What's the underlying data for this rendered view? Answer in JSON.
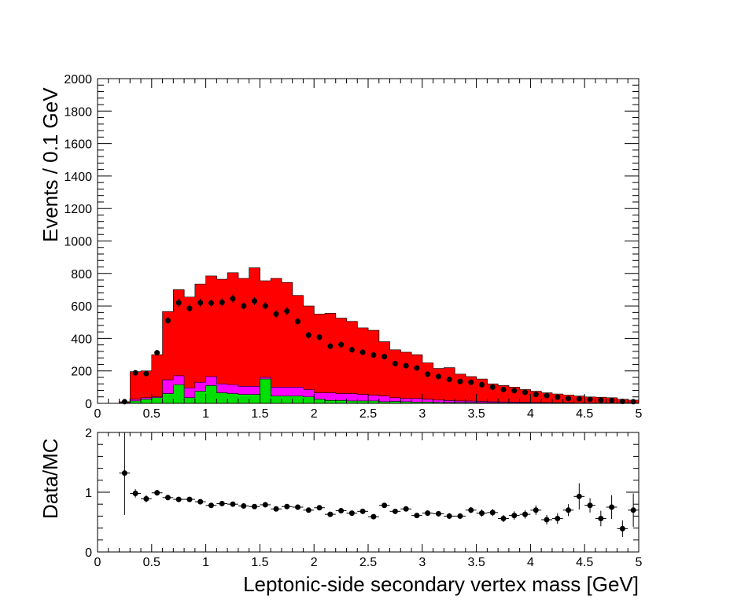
{
  "chart_data": [
    {
      "type": "bar",
      "panel": "main",
      "ylabel": "Events / 0.1 GeV",
      "xlim": [
        0,
        5
      ],
      "ylim": [
        0,
        2000
      ],
      "x_ticks": [
        "0",
        "0.5",
        "1",
        "1.5",
        "2",
        "2.5",
        "3",
        "3.5",
        "4",
        "4.5",
        "5"
      ],
      "y_ticks": [
        "0",
        "200",
        "400",
        "600",
        "800",
        "1000",
        "1200",
        "1400",
        "1600",
        "1800",
        "2000"
      ],
      "bin_width": 0.1,
      "bin_centers": [
        0.25,
        0.35,
        0.45,
        0.55,
        0.65,
        0.75,
        0.85,
        0.95,
        1.05,
        1.15,
        1.25,
        1.35,
        1.45,
        1.55,
        1.65,
        1.75,
        1.85,
        1.95,
        2.05,
        2.15,
        2.25,
        2.35,
        2.45,
        2.55,
        2.65,
        2.75,
        2.85,
        2.95,
        3.05,
        3.15,
        3.25,
        3.35,
        3.45,
        3.55,
        3.65,
        3.75,
        3.85,
        3.95,
        4.05,
        4.15,
        4.25,
        4.35,
        4.45,
        4.55,
        4.65,
        4.75,
        4.85,
        4.95
      ],
      "stack_colors": {
        "green": "#00e000",
        "magenta": "#ff00ff",
        "red": "#ff0000"
      },
      "series": [
        {
          "color": "#00e000",
          "stack": "bottom",
          "values": [
            0,
            15,
            25,
            35,
            60,
            115,
            35,
            75,
            110,
            65,
            60,
            55,
            55,
            150,
            45,
            45,
            45,
            40,
            25,
            18,
            18,
            15,
            15,
            15,
            10,
            12,
            10,
            8,
            8,
            6,
            5,
            5,
            5,
            4,
            4,
            3,
            3,
            3,
            2,
            2,
            2,
            1,
            1,
            1,
            1,
            1,
            1,
            1
          ]
        },
        {
          "color": "#ff00ff",
          "stack": "middle",
          "values": [
            5,
            25,
            35,
            40,
            145,
            170,
            95,
            130,
            165,
            120,
            115,
            105,
            105,
            160,
            100,
            100,
            100,
            85,
            65,
            65,
            60,
            60,
            55,
            50,
            45,
            35,
            30,
            30,
            25,
            20,
            18,
            15,
            14,
            12,
            10,
            9,
            8,
            7,
            6,
            5,
            4,
            4,
            3,
            3,
            3,
            2,
            2,
            2
          ]
        },
        {
          "color": "#ff0000",
          "stack": "total",
          "values": [
            10,
            195,
            200,
            300,
            565,
            700,
            655,
            735,
            785,
            765,
            805,
            770,
            835,
            755,
            770,
            745,
            665,
            600,
            550,
            555,
            525,
            505,
            465,
            450,
            380,
            330,
            315,
            300,
            250,
            215,
            220,
            180,
            165,
            150,
            120,
            110,
            100,
            85,
            75,
            65,
            58,
            52,
            45,
            40,
            38,
            35,
            25,
            20
          ]
        }
      ],
      "data_points": [
        10,
        188,
        183,
        312,
        510,
        620,
        585,
        620,
        618,
        622,
        645,
        600,
        630,
        600,
        550,
        568,
        505,
        420,
        408,
        352,
        362,
        330,
        315,
        298,
        288,
        245,
        232,
        218,
        180,
        165,
        148,
        135,
        130,
        115,
        100,
        85,
        78,
        68,
        55,
        48,
        38,
        30,
        28,
        25,
        20,
        18,
        12,
        10
      ]
    },
    {
      "type": "scatter",
      "panel": "ratio",
      "xlabel": "Leptonic-side secondary vertex mass [GeV]",
      "ylabel": "Data/MC",
      "xlim": [
        0,
        5
      ],
      "ylim": [
        0,
        2
      ],
      "x_ticks": [
        "0",
        "0.5",
        "1",
        "1.5",
        "2",
        "2.5",
        "3",
        "3.5",
        "4",
        "4.5",
        "5"
      ],
      "y_ticks": [
        "0",
        "1",
        "2"
      ],
      "x": [
        0.25,
        0.35,
        0.45,
        0.55,
        0.65,
        0.75,
        0.85,
        0.95,
        1.05,
        1.15,
        1.25,
        1.35,
        1.45,
        1.55,
        1.65,
        1.75,
        1.85,
        1.95,
        2.05,
        2.15,
        2.25,
        2.35,
        2.45,
        2.55,
        2.65,
        2.75,
        2.85,
        2.95,
        3.05,
        3.15,
        3.25,
        3.35,
        3.45,
        3.55,
        3.65,
        3.75,
        3.85,
        3.95,
        4.05,
        4.15,
        4.25,
        4.35,
        4.45,
        4.55,
        4.65,
        4.75,
        4.85,
        4.95
      ],
      "y": [
        1.32,
        0.98,
        0.89,
        0.99,
        0.91,
        0.88,
        0.88,
        0.84,
        0.78,
        0.81,
        0.8,
        0.77,
        0.76,
        0.79,
        0.72,
        0.76,
        0.75,
        0.7,
        0.74,
        0.63,
        0.69,
        0.65,
        0.68,
        0.59,
        0.78,
        0.68,
        0.72,
        0.61,
        0.65,
        0.64,
        0.6,
        0.6,
        0.7,
        0.65,
        0.66,
        0.56,
        0.61,
        0.63,
        0.7,
        0.54,
        0.56,
        0.7,
        0.93,
        0.78,
        0.56,
        0.75,
        0.39,
        0.7
      ],
      "yerr": [
        0.7,
        0.07,
        0.06,
        0.05,
        0.04,
        0.04,
        0.04,
        0.035,
        0.03,
        0.03,
        0.03,
        0.03,
        0.03,
        0.03,
        0.03,
        0.03,
        0.03,
        0.03,
        0.035,
        0.035,
        0.035,
        0.035,
        0.035,
        0.035,
        0.04,
        0.04,
        0.04,
        0.04,
        0.045,
        0.045,
        0.05,
        0.05,
        0.05,
        0.06,
        0.06,
        0.06,
        0.07,
        0.07,
        0.08,
        0.08,
        0.09,
        0.1,
        0.22,
        0.12,
        0.13,
        0.2,
        0.14,
        0.28
      ]
    }
  ]
}
